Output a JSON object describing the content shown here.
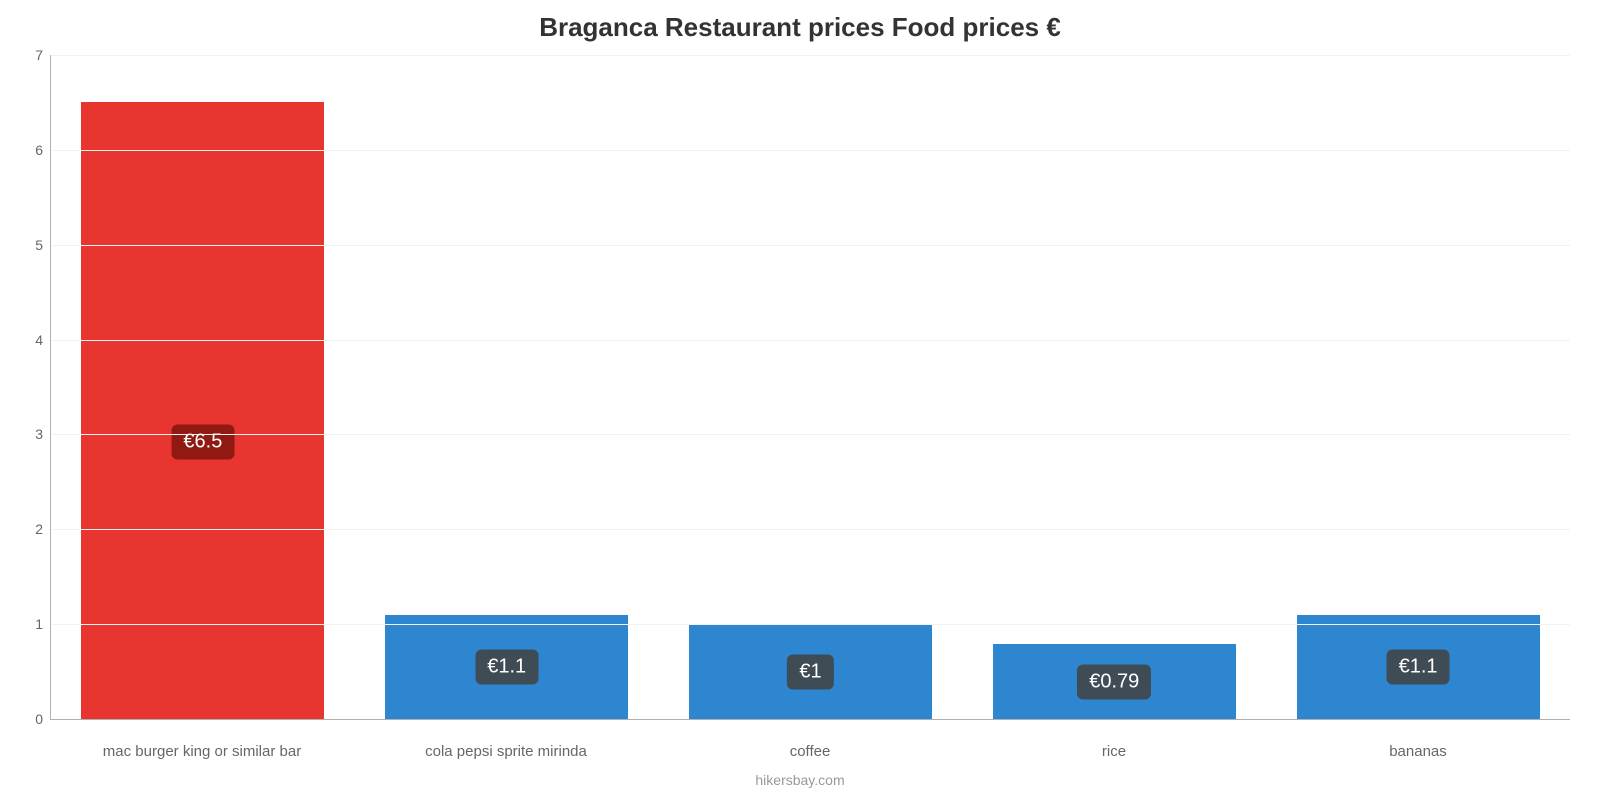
{
  "chart": {
    "type": "bar",
    "title": "Braganca Restaurant prices Food prices €",
    "title_fontsize": 26,
    "title_color": "#333333",
    "background_color": "#ffffff",
    "grid_color": "#f2f2f2",
    "axis_color": "#b0b0b0",
    "ylim": [
      0,
      7
    ],
    "yticks": [
      0,
      1,
      2,
      3,
      4,
      5,
      6,
      7
    ],
    "tick_label_color": "#666666",
    "tick_label_fontsize": 14,
    "x_label_fontsize": 15,
    "bar_width_pct": 80,
    "value_badge_fontsize": 20,
    "value_badge_text_color": "#ffffff",
    "categories": [
      "mac burger king or similar bar",
      "cola pepsi sprite mirinda",
      "coffee",
      "rice",
      "bananas"
    ],
    "values": [
      6.5,
      1.1,
      1.0,
      0.79,
      1.1
    ],
    "value_labels": [
      "€6.5",
      "€1.1",
      "€1",
      "€0.79",
      "€1.1"
    ],
    "bar_colors": [
      "#e9352f",
      "#2e86d0",
      "#2e86d0",
      "#2e86d0",
      "#2e86d0"
    ],
    "value_badge_bg_colors": [
      "#901912",
      "#3f4c56",
      "#3f4c56",
      "#3f4c56",
      "#3f4c56"
    ],
    "value_badge_vpos_pct": [
      55,
      50,
      50,
      50,
      50
    ],
    "footer": "hikersbay.com",
    "footer_color": "#999999",
    "footer_fontsize": 14
  }
}
